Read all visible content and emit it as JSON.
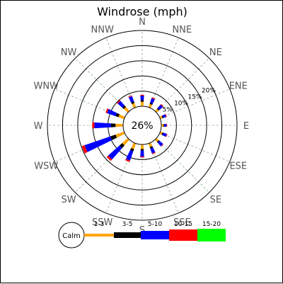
{
  "chart_data": {
    "type": "windrose",
    "title": "Windrose (mph)",
    "units": "%",
    "calm": {
      "label": "26%",
      "value": 26
    },
    "ring_values": [
      5,
      10,
      15,
      20
    ],
    "ring_labels": [
      "5%",
      "10%",
      "15%",
      "20%"
    ],
    "rmax": 25,
    "directions": [
      "N",
      "NNE",
      "NE",
      "ENE",
      "E",
      "ESE",
      "SE",
      "SSE",
      "S",
      "SSW",
      "SW",
      "WSW",
      "W",
      "WNW",
      "NW",
      "NNW"
    ],
    "speed_bins": [
      {
        "name": "1-3",
        "color": "#ffa500"
      },
      {
        "name": "3-5",
        "color": "#000000"
      },
      {
        "name": "5-10",
        "color": "#0000ff"
      },
      {
        "name": "10-15",
        "color": "#ff0000"
      },
      {
        "name": "15-20",
        "color": "#00ff00"
      }
    ],
    "values": [
      [
        1.5,
        0.5,
        1.5,
        0.3,
        0
      ],
      [
        1.2,
        0.4,
        1.6,
        0.3,
        0
      ],
      [
        1.0,
        0.3,
        1.5,
        0.3,
        0
      ],
      [
        0.8,
        0.3,
        1.0,
        0.2,
        0
      ],
      [
        0.7,
        0.3,
        0.7,
        0.2,
        0
      ],
      [
        0.8,
        0.3,
        1.2,
        0.2,
        0
      ],
      [
        1.0,
        0.3,
        1.6,
        0.2,
        0
      ],
      [
        1.3,
        0.5,
        1.7,
        0.3,
        0
      ],
      [
        1.5,
        0.5,
        2.0,
        0.3,
        0
      ],
      [
        2.0,
        0.8,
        3.2,
        0.5,
        0
      ],
      [
        2.5,
        1.2,
        5.0,
        0.7,
        0
      ],
      [
        3.0,
        1.8,
        9.0,
        1.0,
        0
      ],
      [
        2.5,
        1.5,
        5.5,
        0.7,
        0
      ],
      [
        2.0,
        1.0,
        3.0,
        0.5,
        0
      ],
      [
        1.8,
        0.7,
        2.0,
        0.4,
        0
      ],
      [
        1.5,
        0.6,
        1.8,
        0.3,
        0
      ]
    ],
    "legend": {
      "calm_label": "Calm"
    },
    "grid": true
  }
}
